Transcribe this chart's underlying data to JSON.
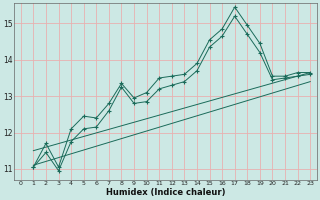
{
  "title": "",
  "xlabel": "Humidex (Indice chaleur)",
  "bg_color": "#cce8e4",
  "grid_color": "#e8b0b0",
  "line_color": "#1a6b5a",
  "xlim": [
    -0.5,
    23.5
  ],
  "ylim": [
    10.7,
    15.55
  ],
  "yticks": [
    11,
    12,
    13,
    14,
    15
  ],
  "xticks": [
    0,
    1,
    2,
    3,
    4,
    5,
    6,
    7,
    8,
    9,
    10,
    11,
    12,
    13,
    14,
    15,
    16,
    17,
    18,
    19,
    20,
    21,
    22,
    23
  ],
  "line1_x": [
    1,
    2,
    3,
    4,
    5,
    6,
    7,
    8,
    9,
    10,
    11,
    12,
    13,
    14,
    15,
    16,
    17,
    18,
    19,
    20,
    21,
    22,
    23
  ],
  "line1_y": [
    11.05,
    11.7,
    11.05,
    12.1,
    12.45,
    12.4,
    12.8,
    13.35,
    12.95,
    13.1,
    13.5,
    13.55,
    13.6,
    13.9,
    14.55,
    14.85,
    15.45,
    14.95,
    14.45,
    13.55,
    13.55,
    13.65,
    13.65
  ],
  "line2_x": [
    1,
    2,
    3,
    4,
    5,
    6,
    7,
    8,
    9,
    10,
    11,
    12,
    13,
    14,
    15,
    16,
    17,
    18,
    19,
    20,
    21,
    22,
    23
  ],
  "line2_y": [
    11.05,
    11.45,
    10.95,
    11.75,
    12.1,
    12.15,
    12.6,
    13.25,
    12.8,
    12.85,
    13.2,
    13.3,
    13.4,
    13.7,
    14.35,
    14.65,
    15.2,
    14.7,
    14.2,
    13.45,
    13.5,
    13.55,
    13.6
  ],
  "line3_x": [
    1,
    23
  ],
  "line3_y": [
    11.5,
    13.65
  ],
  "line4_x": [
    1,
    23
  ],
  "line4_y": [
    11.1,
    13.4
  ]
}
